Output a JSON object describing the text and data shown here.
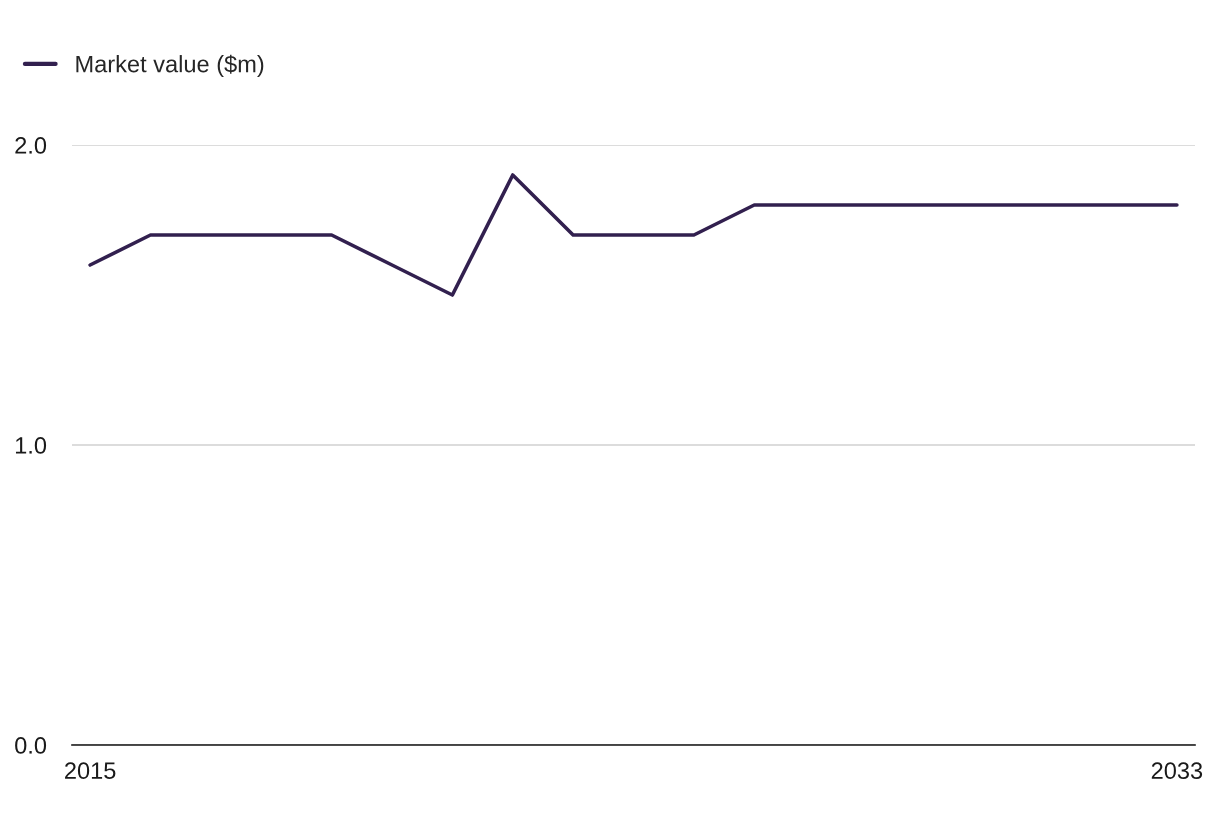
{
  "chart_data": {
    "type": "line",
    "x": [
      2015,
      2016,
      2017,
      2018,
      2019,
      2020,
      2021,
      2022,
      2023,
      2024,
      2025,
      2026,
      2027,
      2028,
      2029,
      2030,
      2031,
      2032,
      2033
    ],
    "series": [
      {
        "name": "Market value ($m)",
        "color": "#32204f",
        "values": [
          1.6,
          1.7,
          1.7,
          1.7,
          1.7,
          1.6,
          1.5,
          1.9,
          1.7,
          1.7,
          1.7,
          1.8,
          1.8,
          1.8,
          1.8,
          1.8,
          1.8,
          1.8,
          1.8
        ]
      }
    ],
    "xlim": [
      2014.7,
      2033.3
    ],
    "xticks": [
      2015,
      2033
    ],
    "ylim": [
      0,
      2.0
    ],
    "yticks": [
      {
        "value": 0,
        "label": "0.0"
      },
      {
        "value": 1,
        "label": "1.0"
      },
      {
        "value": 2,
        "label": "2.0"
      }
    ],
    "grid": "y",
    "legend": "top left",
    "marker": "none",
    "line_style": "solid"
  }
}
